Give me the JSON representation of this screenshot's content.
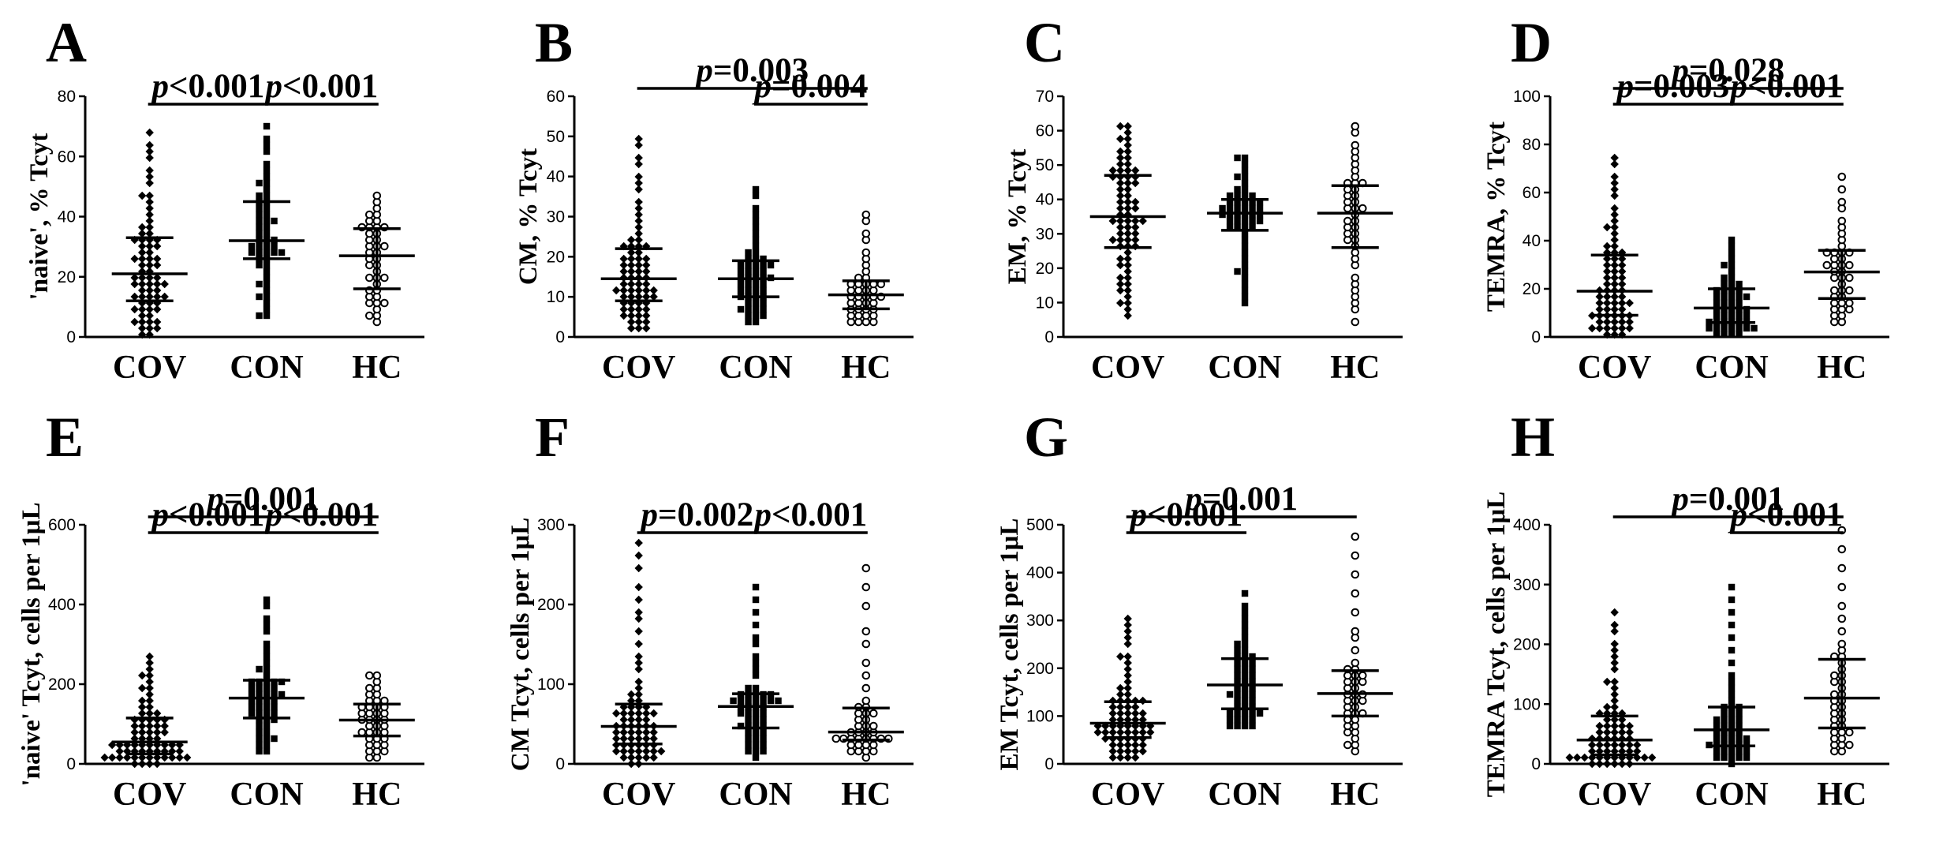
{
  "figure": {
    "chart_data": [
      {
        "panel": "A",
        "type": "scatter",
        "ylabel": "'naive', % Tcyt",
        "ylim": [
          0,
          80
        ],
        "yticks": [
          0,
          20,
          40,
          60,
          80
        ],
        "categories": [
          "COV",
          "CON",
          "HC"
        ],
        "groups": [
          {
            "name": "COV",
            "marker": "diamond",
            "median": 21,
            "q1": 12,
            "q3": 33,
            "n": 70,
            "min": 1,
            "max": 68,
            "seed": 11
          },
          {
            "name": "CON",
            "marker": "square",
            "median": 32,
            "q1": 26,
            "q3": 45,
            "n": 52,
            "min": 6,
            "max": 70,
            "seed": 12
          },
          {
            "name": "HC",
            "marker": "circle",
            "median": 27,
            "q1": 16,
            "q3": 36,
            "n": 40,
            "min": 6,
            "max": 46,
            "seed": 13
          }
        ],
        "comparisons": [
          {
            "from": 0,
            "to": 1,
            "level": 0,
            "prefix": "p",
            "value": "<0.001"
          },
          {
            "from": 1,
            "to": 2,
            "level": 0,
            "prefix": "p",
            "value": "<0.001"
          }
        ]
      },
      {
        "panel": "B",
        "type": "scatter",
        "ylabel": "CM, % Tcyt",
        "ylim": [
          0,
          60
        ],
        "yticks": [
          0,
          10,
          20,
          30,
          40,
          50,
          60
        ],
        "categories": [
          "COV",
          "CON",
          "HC"
        ],
        "groups": [
          {
            "name": "COV",
            "marker": "diamond",
            "median": 14.5,
            "q1": 9,
            "q3": 22,
            "n": 70,
            "min": 2,
            "max": 50,
            "seed": 21
          },
          {
            "name": "CON",
            "marker": "square",
            "median": 14.5,
            "q1": 10,
            "q3": 19,
            "n": 52,
            "min": 4,
            "max": 37,
            "seed": 22
          },
          {
            "name": "HC",
            "marker": "circle",
            "median": 10.5,
            "q1": 7,
            "q3": 14,
            "n": 40,
            "min": 3,
            "max": 31,
            "seed": 23
          }
        ],
        "comparisons": [
          {
            "from": 0,
            "to": 2,
            "level": 1,
            "prefix": "p",
            "value": "=0.003"
          },
          {
            "from": 1,
            "to": 2,
            "level": 0,
            "prefix": "p",
            "value": "=0.004"
          }
        ]
      },
      {
        "panel": "C",
        "type": "scatter",
        "ylabel": "EM, % Tcyt",
        "ylim": [
          0,
          70
        ],
        "yticks": [
          0,
          10,
          20,
          30,
          40,
          50,
          60,
          70
        ],
        "categories": [
          "COV",
          "CON",
          "HC"
        ],
        "groups": [
          {
            "name": "COV",
            "marker": "diamond",
            "median": 35,
            "q1": 26,
            "q3": 47,
            "n": 70,
            "min": 7,
            "max": 62,
            "seed": 31
          },
          {
            "name": "CON",
            "marker": "square",
            "median": 36,
            "q1": 31,
            "q3": 40,
            "n": 52,
            "min": 10,
            "max": 53,
            "seed": 32
          },
          {
            "name": "HC",
            "marker": "circle",
            "median": 36,
            "q1": 26,
            "q3": 44,
            "n": 40,
            "min": 5,
            "max": 62,
            "seed": 33
          }
        ],
        "comparisons": []
      },
      {
        "panel": "D",
        "type": "scatter",
        "ylabel": "TEMRA, % Tcyt",
        "ylim": [
          0,
          100
        ],
        "yticks": [
          0,
          20,
          40,
          60,
          80,
          100
        ],
        "categories": [
          "COV",
          "CON",
          "HC"
        ],
        "groups": [
          {
            "name": "COV",
            "marker": "diamond",
            "median": 19,
            "q1": 9,
            "q3": 34,
            "n": 70,
            "min": 1,
            "max": 75,
            "seed": 41
          },
          {
            "name": "CON",
            "marker": "square",
            "median": 12,
            "q1": 6,
            "q3": 20,
            "n": 52,
            "min": 1,
            "max": 40,
            "seed": 42
          },
          {
            "name": "HC",
            "marker": "circle",
            "median": 27,
            "q1": 16,
            "q3": 36,
            "n": 40,
            "min": 6,
            "max": 66,
            "seed": 43
          }
        ],
        "comparisons": [
          {
            "from": 0,
            "to": 2,
            "level": 1,
            "prefix": "p",
            "value": "=0.028"
          },
          {
            "from": 0,
            "to": 1,
            "level": 0,
            "prefix": "p",
            "value": "=0.003"
          },
          {
            "from": 1,
            "to": 2,
            "level": 0,
            "prefix": "p",
            "value": "<0.001"
          }
        ]
      },
      {
        "panel": "E",
        "type": "scatter",
        "ylabel": "'naive' Tcyt, cells per 1μL",
        "ylim": [
          0,
          600
        ],
        "yticks": [
          0,
          200,
          400,
          600
        ],
        "categories": [
          "COV",
          "CON",
          "HC"
        ],
        "groups": [
          {
            "name": "COV",
            "marker": "diamond",
            "median": 55,
            "q1": 25,
            "q3": 115,
            "n": 70,
            "min": 5,
            "max": 270,
            "seed": 51
          },
          {
            "name": "CON",
            "marker": "square",
            "median": 165,
            "q1": 115,
            "q3": 210,
            "n": 52,
            "min": 30,
            "max": 420,
            "seed": 52
          },
          {
            "name": "HC",
            "marker": "circle",
            "median": 110,
            "q1": 70,
            "q3": 150,
            "n": 40,
            "min": 15,
            "max": 230,
            "seed": 53
          }
        ],
        "comparisons": [
          {
            "from": 0,
            "to": 2,
            "level": 1,
            "prefix": "p",
            "value": "=0.001"
          },
          {
            "from": 0,
            "to": 1,
            "level": 0,
            "prefix": "p",
            "value": "<0.001"
          },
          {
            "from": 1,
            "to": 2,
            "level": 0,
            "prefix": "p",
            "value": "<0.001"
          }
        ]
      },
      {
        "panel": "F",
        "type": "scatter",
        "ylabel": "CM Tcyt, cells per 1μL",
        "ylim": [
          0,
          300
        ],
        "yticks": [
          0,
          100,
          200,
          300
        ],
        "categories": [
          "COV",
          "CON",
          "HC"
        ],
        "groups": [
          {
            "name": "COV",
            "marker": "diamond",
            "median": 47,
            "q1": 25,
            "q3": 75,
            "n": 70,
            "min": 3,
            "max": 280,
            "seed": 61
          },
          {
            "name": "CON",
            "marker": "square",
            "median": 72,
            "q1": 45,
            "q3": 88,
            "n": 52,
            "min": 10,
            "max": 220,
            "seed": 62
          },
          {
            "name": "HC",
            "marker": "circle",
            "median": 40,
            "q1": 30,
            "q3": 70,
            "n": 40,
            "min": 10,
            "max": 250,
            "seed": 63
          }
        ],
        "comparisons": [
          {
            "from": 0,
            "to": 1,
            "level": 0,
            "prefix": "p",
            "value": "=0.002"
          },
          {
            "from": 1,
            "to": 2,
            "level": 0,
            "prefix": "p",
            "value": "<0.001"
          }
        ]
      },
      {
        "panel": "G",
        "type": "scatter",
        "ylabel": "EM Tcyt, cells per 1μL",
        "ylim": [
          0,
          500
        ],
        "yticks": [
          0,
          100,
          200,
          300,
          400,
          500
        ],
        "categories": [
          "COV",
          "CON",
          "HC"
        ],
        "groups": [
          {
            "name": "COV",
            "marker": "diamond",
            "median": 85,
            "q1": 55,
            "q3": 130,
            "n": 70,
            "min": 10,
            "max": 305,
            "seed": 71
          },
          {
            "name": "CON",
            "marker": "square",
            "median": 165,
            "q1": 115,
            "q3": 220,
            "n": 52,
            "min": 75,
            "max": 350,
            "seed": 72
          },
          {
            "name": "HC",
            "marker": "circle",
            "median": 147,
            "q1": 100,
            "q3": 195,
            "n": 40,
            "min": 30,
            "max": 478,
            "seed": 73
          }
        ],
        "comparisons": [
          {
            "from": 0,
            "to": 2,
            "level": 1,
            "prefix": "p",
            "value": "=0.001"
          },
          {
            "from": 0,
            "to": 1,
            "level": 0,
            "prefix": "p",
            "value": "<0.001"
          }
        ]
      },
      {
        "panel": "H",
        "type": "scatter",
        "ylabel": "TEMRA Tcyt, cells per 1μL",
        "ylim": [
          0,
          400
        ],
        "yticks": [
          0,
          100,
          200,
          300,
          400
        ],
        "categories": [
          "COV",
          "CON",
          "HC"
        ],
        "groups": [
          {
            "name": "COV",
            "marker": "diamond",
            "median": 40,
            "q1": 15,
            "q3": 80,
            "n": 70,
            "min": 2,
            "max": 250,
            "seed": 81
          },
          {
            "name": "CON",
            "marker": "square",
            "median": 57,
            "q1": 30,
            "q3": 95,
            "n": 52,
            "min": 5,
            "max": 300,
            "seed": 82
          },
          {
            "name": "HC",
            "marker": "circle",
            "median": 110,
            "q1": 60,
            "q3": 175,
            "n": 40,
            "min": 20,
            "max": 390,
            "seed": 83
          }
        ],
        "comparisons": [
          {
            "from": 0,
            "to": 2,
            "level": 1,
            "prefix": "p",
            "value": "=0.001"
          },
          {
            "from": 1,
            "to": 2,
            "level": 0,
            "prefix": "p",
            "value": "<0.001"
          }
        ]
      }
    ]
  }
}
